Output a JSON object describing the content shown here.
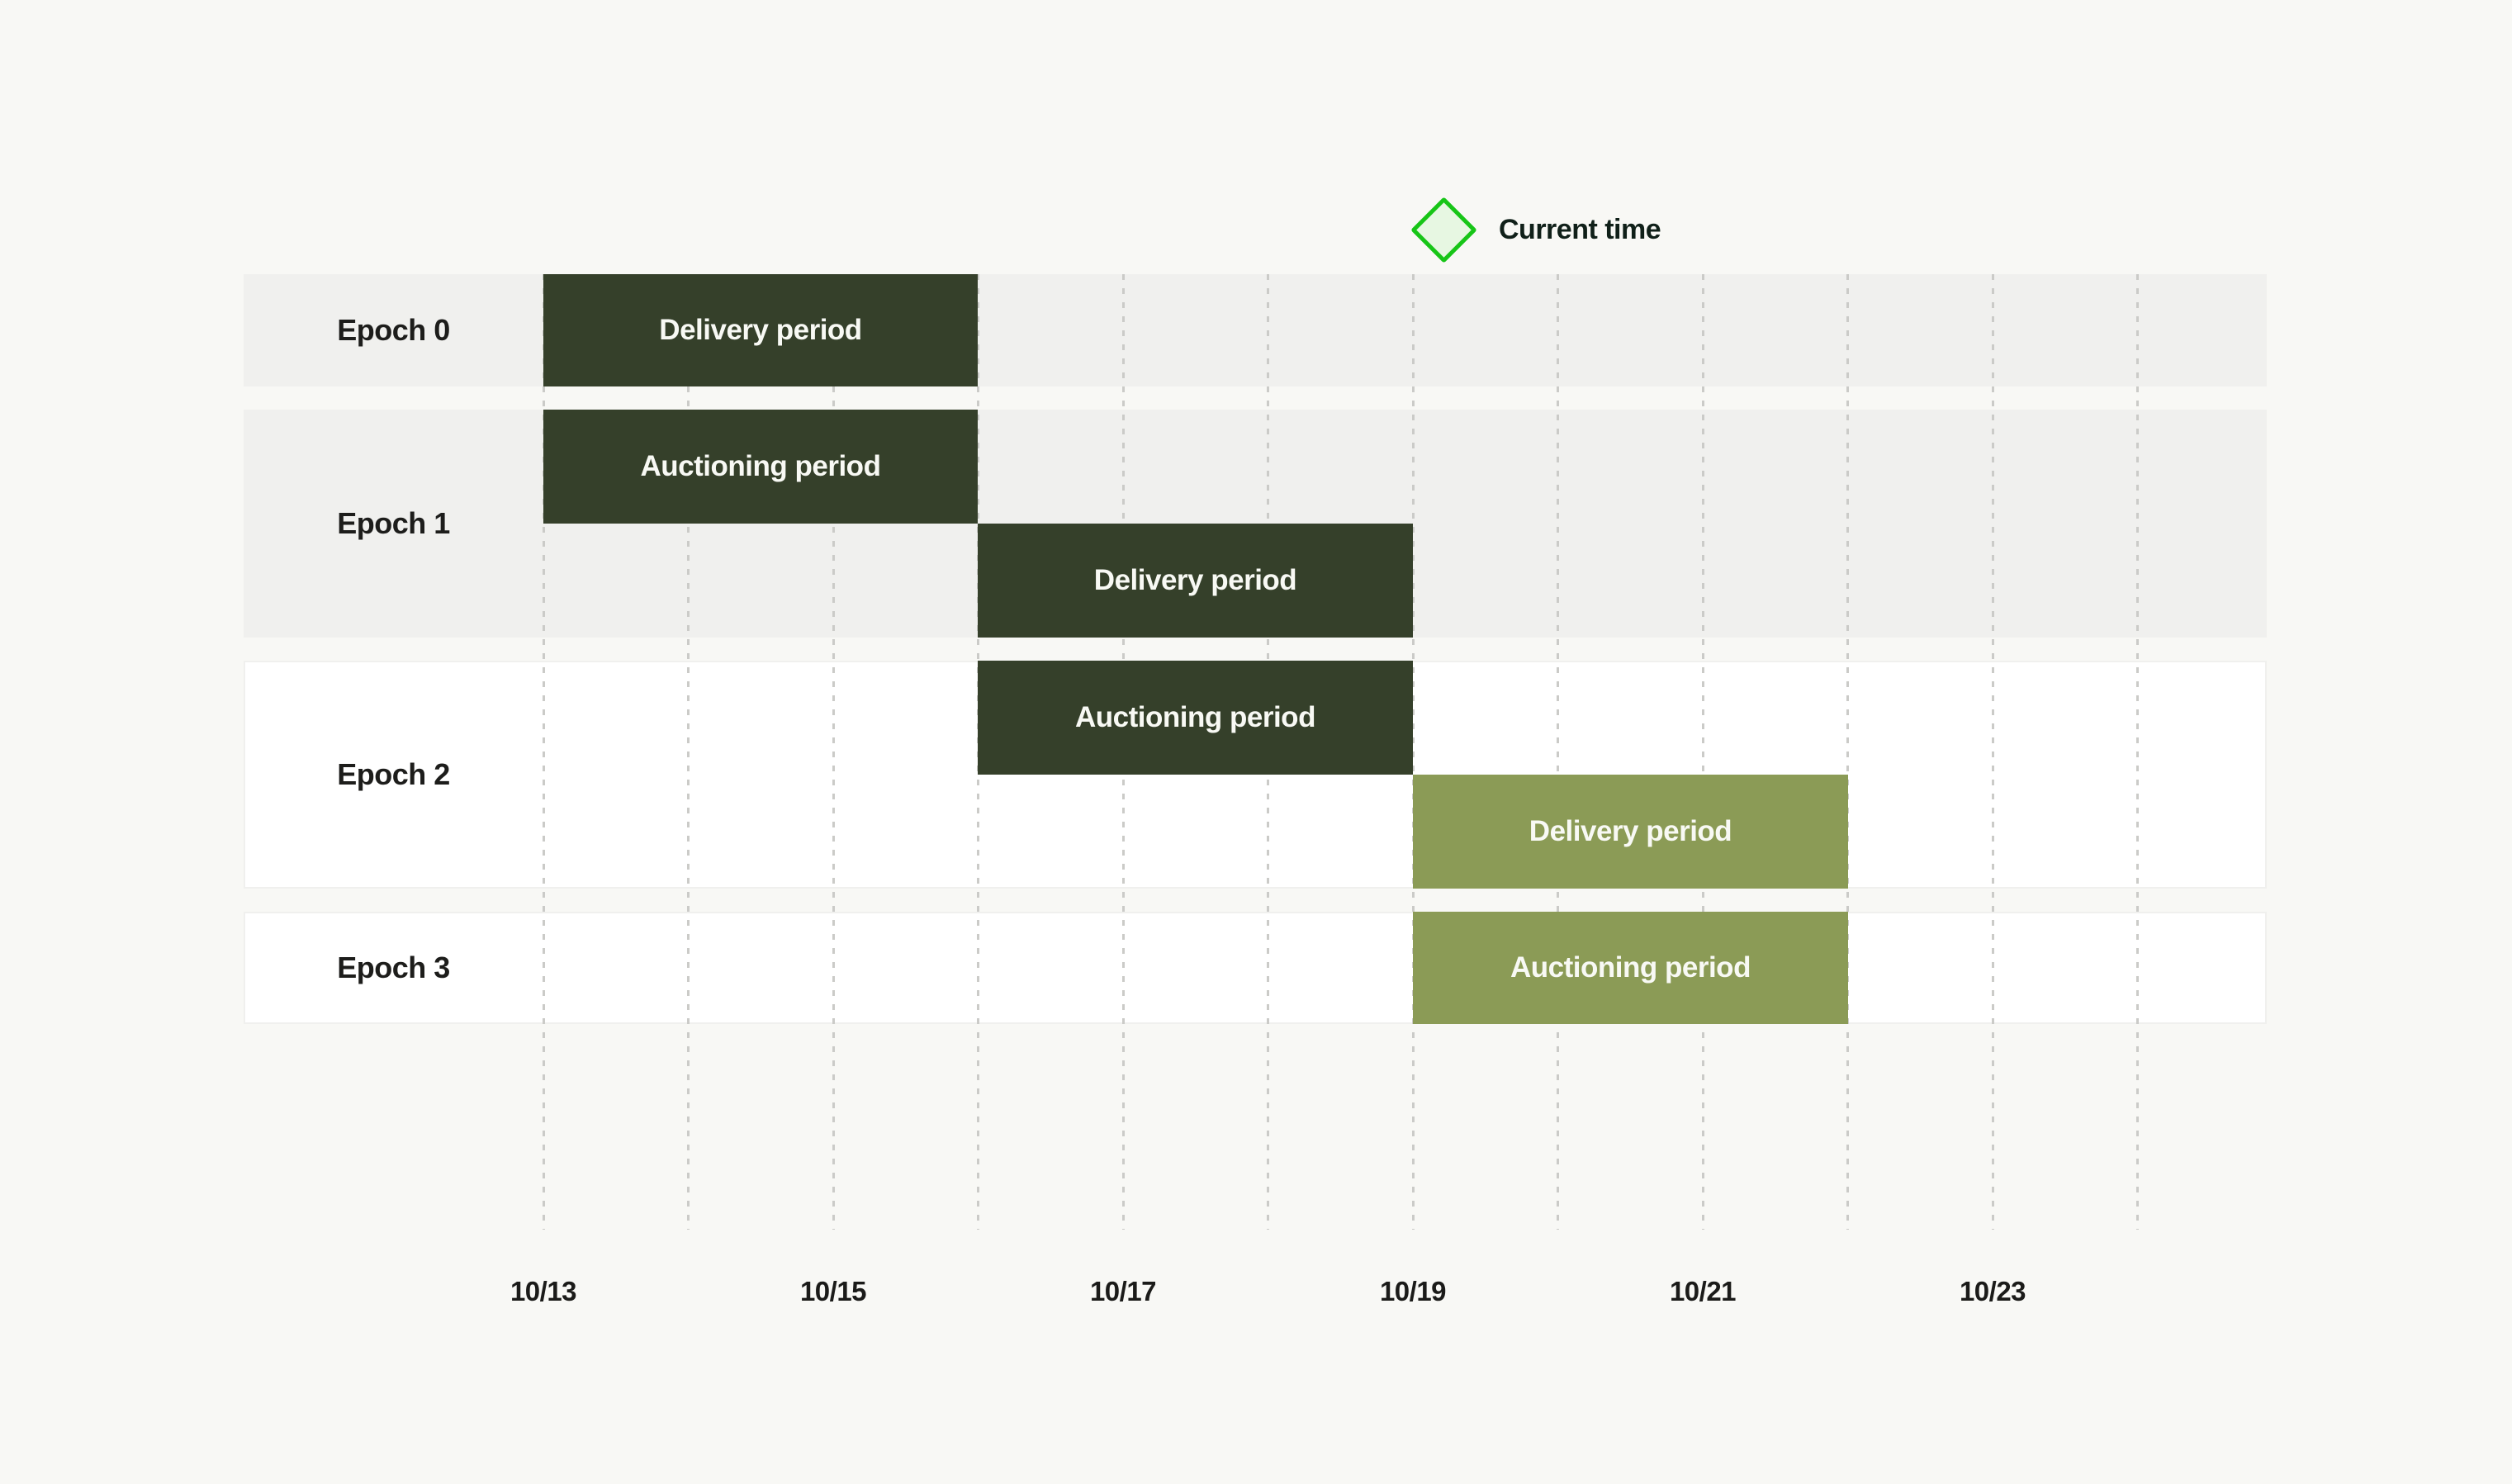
{
  "legend": {
    "label": "Current time",
    "marker_shape": "diamond-outline",
    "marker_stroke_color": "#17c517",
    "marker_fill_color": "#e7f7e2",
    "position_date": "10/19"
  },
  "colors": {
    "page_background": "#f8f8f5",
    "row_gray": "#f0f0ee",
    "row_white": "#ffffff",
    "bar_dark_green": "#35402a",
    "bar_olive": "#8b9b56",
    "gridline": "#cbcbc8",
    "bar_text": "#f8f9f4",
    "label_text": "#1d1d1b"
  },
  "epochs": [
    {
      "label": "Epoch 0",
      "bars": [
        {
          "label": "Delivery period",
          "start": "10/13",
          "end": "10/16",
          "color": "#35402a"
        }
      ]
    },
    {
      "label": "Epoch 1",
      "bars": [
        {
          "label": "Auctioning period",
          "start": "10/13",
          "end": "10/16",
          "color": "#35402a"
        },
        {
          "label": "Delivery period",
          "start": "10/16",
          "end": "10/19",
          "color": "#35402a"
        }
      ]
    },
    {
      "label": "Epoch 2",
      "bars": [
        {
          "label": "Auctioning period",
          "start": "10/16",
          "end": "10/19",
          "color": "#35402a"
        },
        {
          "label": "Delivery period",
          "start": "10/19",
          "end": "10/22",
          "color": "#8b9b56"
        }
      ]
    },
    {
      "label": "Epoch 3",
      "bars": [
        {
          "label": "Auctioning period",
          "start": "10/19",
          "end": "10/22",
          "color": "#8b9b56"
        }
      ]
    }
  ],
  "axis": {
    "tick_labels": [
      "10/13",
      "10/15",
      "10/17",
      "10/19",
      "10/21",
      "10/23"
    ],
    "gridline_days": [
      "10/13",
      "10/14",
      "10/15",
      "10/16",
      "10/17",
      "10/18",
      "10/19",
      "10/20",
      "10/21",
      "10/22",
      "10/23",
      "10/24"
    ]
  },
  "chart_data": {
    "type": "gantt",
    "title": "",
    "x_axis": {
      "unit": "date",
      "tick_labels": [
        "10/13",
        "10/15",
        "10/17",
        "10/19",
        "10/21",
        "10/23"
      ],
      "gridlines_every": "1 day",
      "range": [
        "10/11",
        "10/25"
      ]
    },
    "rows": [
      {
        "name": "Epoch 0",
        "row_background": "gray",
        "periods": [
          {
            "label": "Delivery period",
            "start": "10/13",
            "end": "10/16",
            "color": "#35402a",
            "lane": "full"
          }
        ]
      },
      {
        "name": "Epoch 1",
        "row_background": "gray",
        "periods": [
          {
            "label": "Auctioning period",
            "start": "10/13",
            "end": "10/16",
            "color": "#35402a",
            "lane": "top"
          },
          {
            "label": "Delivery period",
            "start": "10/16",
            "end": "10/19",
            "color": "#35402a",
            "lane": "bottom"
          }
        ]
      },
      {
        "name": "Epoch 2",
        "row_background": "white",
        "periods": [
          {
            "label": "Auctioning period",
            "start": "10/16",
            "end": "10/19",
            "color": "#35402a",
            "lane": "top"
          },
          {
            "label": "Delivery period",
            "start": "10/19",
            "end": "10/22",
            "color": "#8b9b56",
            "lane": "bottom"
          }
        ]
      },
      {
        "name": "Epoch 3",
        "row_background": "white",
        "periods": [
          {
            "label": "Auctioning period",
            "start": "10/19",
            "end": "10/22",
            "color": "#8b9b56",
            "lane": "full"
          }
        ]
      }
    ],
    "legend": [
      {
        "marker": "green outlined diamond",
        "label": "Current time",
        "at": "just after 10/19"
      }
    ],
    "legend_position": "top, above 10/19 gridline"
  }
}
